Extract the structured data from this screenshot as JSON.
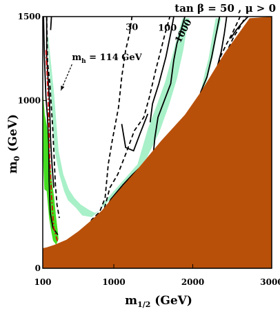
{
  "chart_data": {
    "type": "area",
    "title": "tan β = 50 ,  μ > 0",
    "xlabel": "m",
    "xlabel_sub": "1/2",
    "xlabel_unit": " (GeV)",
    "ylabel": "m",
    "ylabel_sub": "0",
    "ylabel_unit": " (GeV)",
    "xlim": [
      100,
      3000
    ],
    "ylim": [
      0,
      1500
    ],
    "x_ticks": [
      {
        "value": 100,
        "label": "100"
      },
      {
        "value": 1000,
        "label": "1000"
      },
      {
        "value": 2000,
        "label": "2000"
      },
      {
        "value": 3000,
        "label": "3000"
      }
    ],
    "y_ticks": [
      {
        "value": 0,
        "label": "0"
      },
      {
        "value": 1000,
        "label": "1000"
      },
      {
        "value": 1500,
        "label": "1500"
      }
    ],
    "colors": {
      "excluded": "#b8500a",
      "relic_density": "#a8f0c8",
      "bsg_excluded": "#44dd22",
      "higgs_line": "#dd0000",
      "contour": "#000000"
    },
    "annotations": [
      {
        "text": "30",
        "x": 1150,
        "y": 1420
      },
      {
        "text": "100",
        "x": 1560,
        "y": 1415
      },
      {
        "text": "1000",
        "x": 1840,
        "y": 1340,
        "rotate": -62
      },
      {
        "text": "m",
        "sub": "h",
        "rest": " = 114 GeV",
        "x": 470,
        "y": 1240
      }
    ],
    "regions": {
      "excluded": [
        [
          100,
          120
        ],
        [
          100,
          0
        ],
        [
          3000,
          0
        ],
        [
          3000,
          1500
        ],
        [
          2720,
          1490
        ],
        [
          2400,
          1280
        ],
        [
          2100,
          1050
        ],
        [
          1900,
          915
        ],
        [
          1600,
          760
        ],
        [
          1300,
          590
        ],
        [
          1000,
          430
        ],
        [
          850,
          345
        ],
        [
          700,
          280
        ],
        [
          550,
          220
        ],
        [
          400,
          170
        ],
        [
          250,
          140
        ],
        [
          150,
          125
        ]
      ],
      "relic_band": [
        [
          170,
          1380
        ],
        [
          240,
          1060
        ],
        [
          300,
          700
        ],
        [
          360,
          560
        ],
        [
          430,
          470
        ],
        [
          500,
          420
        ],
        [
          580,
          380
        ],
        [
          680,
          350
        ],
        [
          760,
          330
        ],
        [
          820,
          345
        ],
        [
          880,
          395
        ],
        [
          1000,
          460
        ],
        [
          1150,
          540
        ],
        [
          1300,
          620
        ],
        [
          1430,
          830
        ],
        [
          1550,
          980
        ],
        [
          1650,
          1110
        ],
        [
          1760,
          1300
        ],
        [
          1810,
          1390
        ],
        [
          1870,
          1490
        ],
        [
          1960,
          1490
        ],
        [
          1910,
          1390
        ],
        [
          1880,
          1300
        ],
        [
          1800,
          1130
        ],
        [
          1700,
          975
        ],
        [
          1580,
          815
        ],
        [
          1420,
          660
        ],
        [
          1270,
          570
        ],
        [
          1100,
          490
        ],
        [
          950,
          410
        ],
        [
          820,
          345
        ],
        [
          720,
          305
        ],
        [
          600,
          315
        ],
        [
          520,
          360
        ],
        [
          420,
          405
        ],
        [
          370,
          460
        ],
        [
          310,
          560
        ],
        [
          250,
          700
        ],
        [
          200,
          1060
        ],
        [
          160,
          1380
        ]
      ],
      "relic_band_right": [
        [
          2100,
          1050
        ],
        [
          2150,
          1160
        ],
        [
          2200,
          1250
        ],
        [
          2240,
          1360
        ],
        [
          2290,
          1490
        ],
        [
          2360,
          1490
        ],
        [
          2300,
          1380
        ],
        [
          2250,
          1250
        ],
        [
          2180,
          1120
        ],
        [
          2120,
          1050
        ]
      ],
      "bsg_excluded": [
        [
          100,
          1060
        ],
        [
          125,
          920
        ],
        [
          155,
          840
        ],
        [
          180,
          700
        ],
        [
          215,
          520
        ],
        [
          245,
          420
        ],
        [
          265,
          320
        ],
        [
          290,
          220
        ],
        [
          300,
          175
        ],
        [
          270,
          140
        ],
        [
          230,
          165
        ],
        [
          200,
          240
        ],
        [
          180,
          300
        ],
        [
          150,
          460
        ],
        [
          120,
          470
        ],
        [
          100,
          700
        ]
      ]
    },
    "series": [
      {
        "style": "dashed",
        "points": [
          [
            150,
            1500
          ],
          [
            160,
            1230
          ],
          [
            190,
            1100
          ],
          [
            210,
            950
          ],
          [
            225,
            850
          ],
          [
            240,
            700
          ],
          [
            260,
            500
          ],
          [
            280,
            380
          ],
          [
            310,
            300
          ]
        ]
      },
      {
        "style": "solid",
        "points": [
          [
            110,
            1500
          ],
          [
            120,
            1270
          ],
          [
            140,
            1020
          ],
          [
            160,
            900
          ],
          [
            175,
            740
          ],
          [
            180,
            520
          ],
          [
            195,
            330
          ],
          [
            230,
            240
          ],
          [
            290,
            200
          ]
        ]
      },
      {
        "style": "solid",
        "points": [
          [
            150,
            1500
          ],
          [
            150,
            1260
          ],
          [
            185,
            1000
          ],
          [
            200,
            760
          ],
          [
            220,
            600
          ],
          [
            240,
            480
          ]
        ]
      },
      {
        "style": "solid",
        "points": [
          [
            210,
            1500
          ],
          [
            200,
            1420
          ]
        ]
      },
      {
        "style": "dashed",
        "points": [
          [
            600,
            170
          ],
          [
            720,
            290
          ],
          [
            820,
            335
          ],
          [
            890,
            420
          ],
          [
            930,
            620
          ],
          [
            980,
            760
          ],
          [
            1060,
            960
          ],
          [
            1100,
            1140
          ],
          [
            1150,
            1300
          ],
          [
            1200,
            1400
          ],
          [
            1230,
            1500
          ]
        ]
      },
      {
        "style": "dashed",
        "points": [
          [
            860,
            320
          ],
          [
            950,
            480
          ],
          [
            1050,
            560
          ],
          [
            1150,
            680
          ],
          [
            1260,
            820
          ],
          [
            1380,
            900
          ],
          [
            1450,
            1020
          ],
          [
            1530,
            1180
          ],
          [
            1590,
            1290
          ],
          [
            1650,
            1400
          ],
          [
            1710,
            1500
          ]
        ]
      },
      {
        "style": "solid",
        "points": [
          [
            860,
            310
          ],
          [
            960,
            410
          ],
          [
            1120,
            500
          ],
          [
            1240,
            560
          ],
          [
            1330,
            600
          ],
          [
            1420,
            640
          ],
          [
            1500,
            680
          ],
          [
            1520,
            780
          ],
          [
            1560,
            900
          ],
          [
            1640,
            1000
          ],
          [
            1720,
            1100
          ],
          [
            1760,
            1240
          ],
          [
            1800,
            1340
          ],
          [
            1840,
            1400
          ],
          [
            1900,
            1500
          ]
        ]
      },
      {
        "style": "solid",
        "points": [
          [
            1100,
            860
          ],
          [
            1150,
            720
          ],
          [
            1250,
            700
          ],
          [
            1330,
            800
          ],
          [
            1430,
            920
          ]
        ]
      },
      {
        "style": "solid",
        "points": [
          [
            1460,
            870
          ],
          [
            1490,
            980
          ],
          [
            1570,
            1100
          ],
          [
            1660,
            1260
          ],
          [
            1720,
            1400
          ],
          [
            1760,
            1500
          ]
        ]
      },
      {
        "style": "solid",
        "points": [
          [
            2050,
            930
          ],
          [
            2100,
            1050
          ],
          [
            2180,
            1140
          ],
          [
            2240,
            1260
          ],
          [
            2290,
            1380
          ],
          [
            2340,
            1500
          ]
        ]
      },
      {
        "style": "solid",
        "points": [
          [
            2230,
            1080
          ],
          [
            2310,
            1200
          ],
          [
            2360,
            1290
          ],
          [
            2400,
            1400
          ],
          [
            2430,
            1500
          ]
        ]
      },
      {
        "style": "dashed",
        "points": [
          [
            2300,
            1180
          ],
          [
            2350,
            1260
          ],
          [
            2420,
            1330
          ],
          [
            2500,
            1400
          ],
          [
            2560,
            1460
          ],
          [
            2600,
            1500
          ]
        ]
      },
      {
        "style": "dashed",
        "points": [
          [
            2380,
            1240
          ],
          [
            2450,
            1310
          ],
          [
            2520,
            1380
          ],
          [
            2600,
            1440
          ],
          [
            2670,
            1500
          ]
        ]
      },
      {
        "style": "solid",
        "points": [
          [
            2480,
            1370
          ],
          [
            2550,
            1420
          ],
          [
            2620,
            1460
          ],
          [
            2700,
            1500
          ]
        ]
      }
    ],
    "higgs_line": [
      [
        140,
        1300
      ],
      [
        160,
        1100
      ],
      [
        175,
        900
      ],
      [
        185,
        700
      ],
      [
        200,
        550
      ],
      [
        215,
        400
      ],
      [
        240,
        240
      ],
      [
        290,
        155
      ]
    ],
    "arrow": {
      "from": [
        470,
        1215
      ],
      "to": [
        330,
        1060
      ]
    }
  }
}
